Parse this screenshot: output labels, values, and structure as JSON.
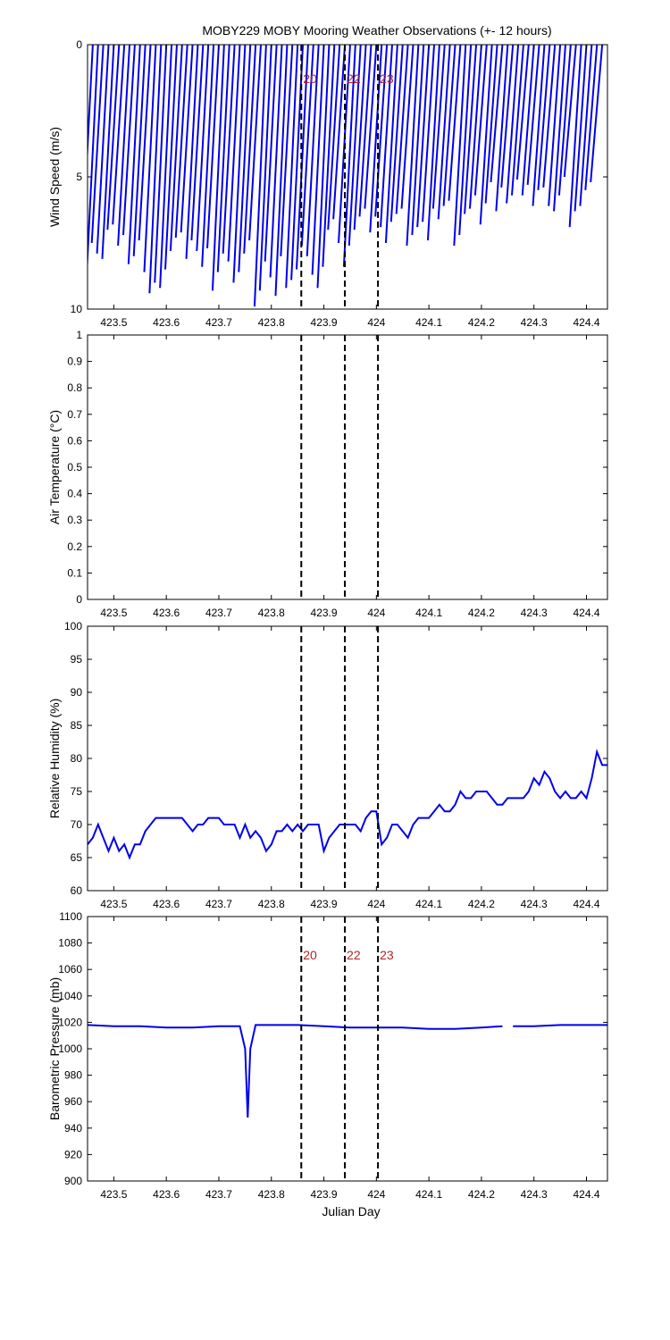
{
  "figure": {
    "title": "MOBY229 MOBY Mooring Weather Observations (+- 12 hours)",
    "xlabel": "Julian Day"
  },
  "colors": {
    "series": "#0000ee",
    "marker_label": "#b22222",
    "axis": "#000000"
  },
  "markers": [
    {
      "x": 423.857,
      "label": "20"
    },
    {
      "x": 423.94,
      "label": "22"
    },
    {
      "x": 424.003,
      "label": "23"
    }
  ],
  "chart_data": [
    {
      "type": "line",
      "id": "wind",
      "ylabel": "Wind Speed (m/s)",
      "xlim": [
        423.45,
        424.44
      ],
      "ylim": [
        0,
        10
      ],
      "y_reversed": true,
      "x_ticks": [
        423.5,
        423.6,
        423.7,
        423.8,
        423.9,
        424,
        424.1,
        424.2,
        424.3,
        424.4
      ],
      "y_ticks": [
        0,
        5,
        10
      ],
      "marker_labels_shown": true,
      "vectors": {
        "description_none": "",
        "x": [
          423.46,
          423.47,
          423.48,
          423.49,
          423.5,
          423.51,
          423.52,
          423.53,
          423.54,
          423.55,
          423.56,
          423.57,
          423.58,
          423.59,
          423.6,
          423.61,
          423.62,
          423.63,
          423.64,
          423.65,
          423.66,
          423.67,
          423.68,
          423.69,
          423.7,
          423.71,
          423.72,
          423.73,
          423.74,
          423.75,
          423.76,
          423.77,
          423.78,
          423.79,
          423.8,
          423.81,
          423.82,
          423.83,
          423.84,
          423.85,
          423.86,
          423.87,
          423.88,
          423.89,
          423.9,
          423.91,
          423.92,
          423.93,
          423.94,
          423.95,
          423.96,
          423.97,
          423.98,
          423.99,
          424.0,
          424.01,
          424.02,
          424.03,
          424.04,
          424.05,
          424.06,
          424.07,
          424.08,
          424.09,
          424.1,
          424.11,
          424.12,
          424.13,
          424.14,
          424.15,
          424.16,
          424.17,
          424.18,
          424.19,
          424.2,
          424.21,
          424.22,
          424.23,
          424.24,
          424.25,
          424.26,
          424.27,
          424.28,
          424.29,
          424.3,
          424.31,
          424.32,
          424.33,
          424.34,
          424.35,
          424.36,
          424.37,
          424.38,
          424.39,
          424.4,
          424.41,
          424.42,
          424.43
        ],
        "speed": [
          8.5,
          8.8,
          7.5,
          7.9,
          8.1,
          7.0,
          6.8,
          7.6,
          7.2,
          8.3,
          8.0,
          7.4,
          8.6,
          9.4,
          9.0,
          9.2,
          8.5,
          7.8,
          7.3,
          7.1,
          8.1,
          7.4,
          7.8,
          8.4,
          7.7,
          9.3,
          8.6,
          7.9,
          8.2,
          9.0,
          8.6,
          7.9,
          7.4,
          9.9,
          9.3,
          8.2,
          8.8,
          9.5,
          8.0,
          9.2,
          8.9,
          8.5,
          7.6,
          8.0,
          8.7,
          9.2,
          8.4,
          7.0,
          6.6,
          7.5,
          8.4,
          7.6,
          7.0,
          6.5,
          6.2,
          7.1,
          6.5,
          6.9,
          7.5,
          6.7,
          6.4,
          6.2,
          7.6,
          7.2,
          6.9,
          6.7,
          7.4,
          6.2,
          6.6,
          6.1,
          5.9,
          7.6,
          7.2,
          6.4,
          6.2,
          5.7,
          6.8,
          6.0,
          5.2,
          6.3,
          5.4,
          6.0,
          5.7,
          5.1,
          5.7,
          5.3,
          6.1,
          5.5,
          5.4,
          6.1,
          6.3,
          5.7,
          5.0,
          6.9,
          6.3,
          6.1,
          5.5,
          5.2
        ],
        "direction_dx": -0.022
      }
    },
    {
      "type": "line",
      "id": "air_temperature",
      "ylabel": "Air Temperature (°C)",
      "xlim": [
        423.45,
        424.44
      ],
      "ylim": [
        0,
        1
      ],
      "x_ticks": [
        423.5,
        423.6,
        423.7,
        423.8,
        423.9,
        424,
        424.1,
        424.2,
        424.3,
        424.4
      ],
      "y_ticks": [
        0,
        0.1,
        0.2,
        0.3,
        0.4,
        0.5,
        0.6,
        0.7,
        0.8,
        0.9,
        1
      ],
      "series": []
    },
    {
      "type": "line",
      "id": "humidity",
      "ylabel": "Relative Humidity (%)",
      "xlim": [
        423.45,
        424.44
      ],
      "ylim": [
        60,
        100
      ],
      "x_ticks": [
        423.5,
        423.6,
        423.7,
        423.8,
        423.9,
        424,
        424.1,
        424.2,
        424.3,
        424.4
      ],
      "y_ticks": [
        60,
        65,
        70,
        75,
        80,
        85,
        90,
        95,
        100
      ],
      "series": [
        {
          "x": [
            423.45,
            423.46,
            423.47,
            423.48,
            423.49,
            423.5,
            423.51,
            423.52,
            423.53,
            423.54,
            423.55,
            423.56,
            423.57,
            423.58,
            423.59,
            423.6,
            423.61,
            423.62,
            423.63,
            423.64,
            423.65,
            423.66,
            423.67,
            423.68,
            423.69,
            423.7,
            423.71,
            423.72,
            423.73,
            423.74,
            423.75,
            423.76,
            423.77,
            423.78,
            423.79,
            423.8,
            423.81,
            423.82,
            423.83,
            423.84,
            423.85,
            423.86,
            423.87,
            423.88,
            423.89,
            423.9,
            423.91,
            423.92,
            423.93,
            423.94,
            423.95,
            423.96,
            423.97,
            423.98,
            423.99,
            424.0,
            424.01,
            424.02,
            424.03,
            424.04,
            424.05,
            424.06,
            424.07,
            424.08,
            424.09,
            424.1,
            424.11,
            424.12,
            424.13,
            424.14,
            424.15,
            424.16,
            424.17,
            424.18,
            424.19,
            424.2,
            424.21,
            424.22,
            424.23,
            424.24,
            424.25,
            424.26,
            424.27,
            424.28,
            424.29,
            424.3,
            424.31,
            424.32,
            424.33,
            424.34,
            424.35,
            424.36,
            424.37,
            424.38,
            424.39,
            424.4,
            424.41,
            424.42,
            424.43,
            424.44
          ],
          "y": [
            67,
            68,
            70,
            68,
            66,
            68,
            66,
            67,
            65,
            67,
            67,
            69,
            70,
            71,
            71,
            71,
            71,
            71,
            71,
            70,
            69,
            70,
            70,
            71,
            71,
            71,
            70,
            70,
            70,
            68,
            70,
            68,
            69,
            68,
            66,
            67,
            69,
            69,
            70,
            69,
            70,
            69,
            70,
            70,
            70,
            66,
            68,
            69,
            70,
            70,
            70,
            70,
            69,
            71,
            72,
            72,
            67,
            68,
            70,
            70,
            69,
            68,
            70,
            71,
            71,
            71,
            72,
            73,
            72,
            72,
            73,
            75,
            74,
            74,
            75,
            75,
            75,
            74,
            73,
            73,
            74,
            74,
            74,
            74,
            75,
            77,
            76,
            78,
            77,
            75,
            74,
            75,
            74,
            74,
            75,
            74,
            77,
            81,
            79,
            79
          ]
        }
      ]
    },
    {
      "type": "line",
      "id": "pressure",
      "ylabel": "Barometric Pressure (mb)",
      "xlim": [
        423.45,
        424.44
      ],
      "ylim": [
        900,
        1100
      ],
      "x_ticks": [
        423.5,
        423.6,
        423.7,
        423.8,
        423.9,
        424,
        424.1,
        424.2,
        424.3,
        424.4
      ],
      "y_ticks": [
        900,
        920,
        940,
        960,
        980,
        1000,
        1020,
        1040,
        1060,
        1080,
        1100
      ],
      "marker_labels_shown": true,
      "series": [
        {
          "x": [
            423.45,
            423.5,
            423.55,
            423.6,
            423.65,
            423.7,
            423.74,
            423.75,
            423.755,
            423.76,
            423.77,
            423.8,
            423.85,
            423.9,
            423.95,
            424.0,
            424.05,
            424.1,
            424.15,
            424.2,
            424.24
          ],
          "y": [
            1018,
            1017,
            1017,
            1016,
            1016,
            1017,
            1017,
            1000,
            948,
            1000,
            1018,
            1018,
            1018,
            1017,
            1016,
            1016,
            1016,
            1015,
            1015,
            1016,
            1017
          ]
        },
        {
          "x": [
            424.26,
            424.3,
            424.35,
            424.4,
            424.44
          ],
          "y": [
            1017,
            1017,
            1018,
            1018,
            1018
          ]
        }
      ]
    }
  ]
}
